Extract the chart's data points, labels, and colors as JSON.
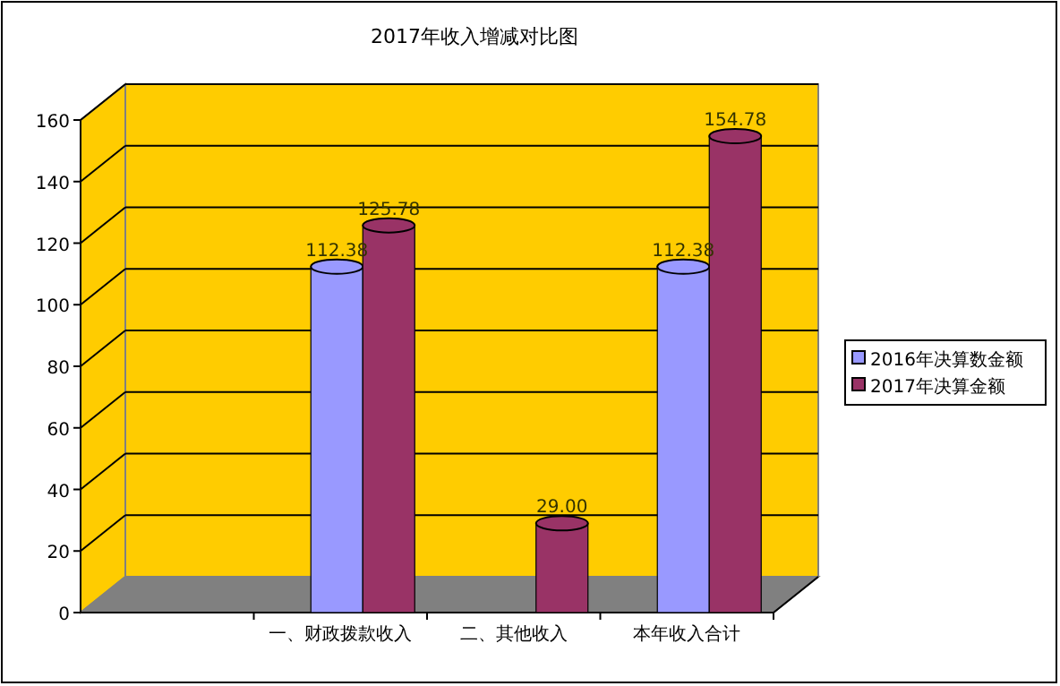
{
  "chart_data": {
    "type": "bar",
    "title": "2017年收入增减对比图",
    "categories": [
      null,
      "一、财政拨款收入",
      "二、其他收入",
      "本年收入合计"
    ],
    "series": [
      {
        "name": "2016年决算数金额",
        "color": "#9999ff",
        "values": [
          null,
          112.38,
          null,
          112.38
        ],
        "value_labels": [
          null,
          "112.38",
          null,
          "112.38"
        ]
      },
      {
        "name": "2017年决算金额",
        "color": "#993366",
        "values": [
          null,
          125.78,
          29.0,
          154.78
        ],
        "value_labels": [
          null,
          "125.78",
          "29.00",
          "154.78"
        ]
      }
    ],
    "ylim": [
      0,
      160
    ],
    "yticks": [
      0,
      20,
      40,
      60,
      80,
      100,
      120,
      140,
      160
    ],
    "grid": "y",
    "legend": "right"
  }
}
